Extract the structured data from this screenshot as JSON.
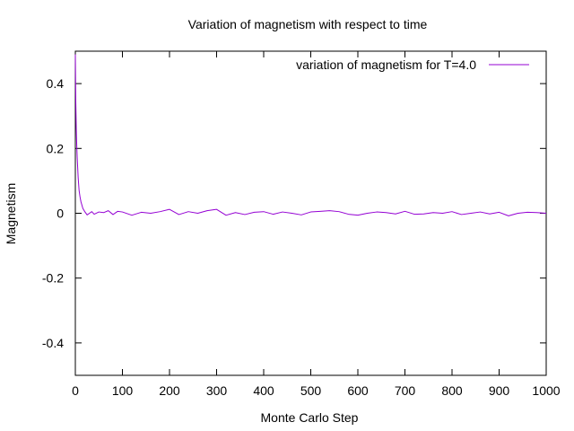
{
  "chart_data": {
    "type": "line",
    "title": "Variation of magnetism with respect to time",
    "xlabel": "Monte Carlo Step",
    "ylabel": "Magnetism",
    "xlim": [
      0,
      1000
    ],
    "ylim": [
      -0.5,
      0.5
    ],
    "x_ticks": [
      0,
      100,
      200,
      300,
      400,
      500,
      600,
      700,
      800,
      900,
      1000
    ],
    "y_ticks": [
      -0.4,
      -0.2,
      0,
      0.2,
      0.4
    ],
    "y_tick_labels": [
      "-0.4",
      "-0.2",
      "0",
      "0.2",
      "0.4"
    ],
    "grid": false,
    "legend_position": "top-right",
    "series": [
      {
        "name": "variation of magnetism for T=4.0",
        "color": "#9400d3",
        "x": [
          0,
          1,
          2,
          3,
          4,
          5,
          6,
          7,
          8,
          9,
          10,
          12,
          14,
          16,
          18,
          20,
          25,
          30,
          35,
          40,
          50,
          60,
          70,
          80,
          90,
          100,
          120,
          140,
          160,
          180,
          200,
          220,
          240,
          260,
          280,
          300,
          320,
          340,
          360,
          380,
          400,
          420,
          440,
          460,
          480,
          500,
          520,
          540,
          560,
          580,
          600,
          620,
          640,
          660,
          680,
          700,
          720,
          740,
          760,
          780,
          800,
          820,
          840,
          860,
          880,
          900,
          920,
          940,
          960,
          980,
          1000
        ],
        "y": [
          0.49,
          0.34,
          0.26,
          0.21,
          0.17,
          0.14,
          0.11,
          0.09,
          0.07,
          0.06,
          0.05,
          0.035,
          0.025,
          0.015,
          0.01,
          0.005,
          -0.005,
          0.0,
          0.005,
          -0.003,
          0.004,
          0.002,
          0.008,
          -0.004,
          0.006,
          0.004,
          -0.006,
          0.003,
          0.0,
          0.005,
          0.012,
          -0.004,
          0.005,
          0.0,
          0.008,
          0.012,
          -0.006,
          0.002,
          -0.004,
          0.003,
          0.005,
          -0.003,
          0.004,
          0.0,
          -0.005,
          0.004,
          0.006,
          0.008,
          0.005,
          -0.003,
          -0.006,
          0.0,
          0.004,
          0.002,
          -0.002,
          0.006,
          -0.003,
          -0.002,
          0.002,
          0.0,
          0.005,
          -0.004,
          0.0,
          0.004,
          -0.002,
          0.003,
          -0.008,
          0.0,
          0.003,
          0.002,
          0.0
        ]
      }
    ]
  }
}
